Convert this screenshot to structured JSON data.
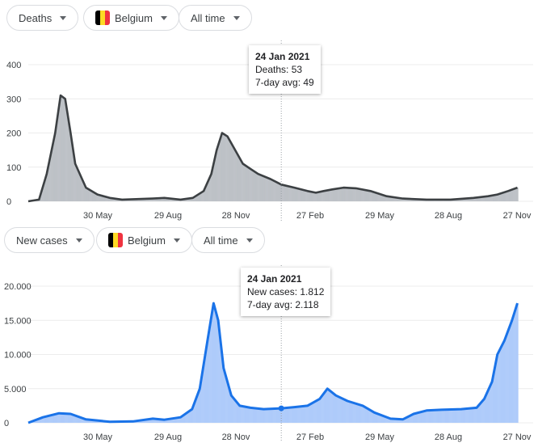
{
  "controls": [
    {
      "metric": "Deaths",
      "country": "Belgium",
      "range": "All time"
    },
    {
      "metric": "New cases",
      "country": "Belgium",
      "range": "All time"
    }
  ],
  "flag_colors": [
    "#000000",
    "#fdda24",
    "#ef3340"
  ],
  "chart_data": [
    {
      "type": "bar+line",
      "metric": "Deaths",
      "line_color": "#3c4043",
      "bar_color": "#bdc1c6",
      "y_ticks": [
        "0",
        "100",
        "200",
        "300",
        "400"
      ],
      "ylim": [
        0,
        480
      ],
      "x_ticks": [
        "30 May",
        "29 Aug",
        "28 Nov",
        "27 Feb",
        "29 May",
        "28 Aug",
        "27 Nov"
      ],
      "tooltip": {
        "date": "24 Jan 2021",
        "value_label": "Deaths: 53",
        "avg_label": "7-day avg: 49"
      },
      "avg": [
        [
          "2020-03-01",
          0
        ],
        [
          "2020-03-15",
          5
        ],
        [
          "2020-03-25",
          80
        ],
        [
          "2020-04-05",
          200
        ],
        [
          "2020-04-12",
          310
        ],
        [
          "2020-04-18",
          300
        ],
        [
          "2020-04-25",
          200
        ],
        [
          "2020-05-01",
          110
        ],
        [
          "2020-05-05",
          90
        ],
        [
          "2020-05-15",
          40
        ],
        [
          "2020-05-30",
          20
        ],
        [
          "2020-06-15",
          10
        ],
        [
          "2020-07-01",
          5
        ],
        [
          "2020-08-10",
          8
        ],
        [
          "2020-08-25",
          10
        ],
        [
          "2020-09-15",
          5
        ],
        [
          "2020-10-01",
          10
        ],
        [
          "2020-10-15",
          30
        ],
        [
          "2020-10-25",
          80
        ],
        [
          "2020-11-01",
          150
        ],
        [
          "2020-11-08",
          200
        ],
        [
          "2020-11-15",
          190
        ],
        [
          "2020-11-25",
          150
        ],
        [
          "2020-12-05",
          110
        ],
        [
          "2020-12-15",
          95
        ],
        [
          "2020-12-25",
          80
        ],
        [
          "2021-01-10",
          65
        ],
        [
          "2021-01-24",
          49
        ],
        [
          "2021-02-10",
          40
        ],
        [
          "2021-02-27",
          30
        ],
        [
          "2021-03-10",
          25
        ],
        [
          "2021-03-20",
          30
        ],
        [
          "2021-04-01",
          35
        ],
        [
          "2021-04-15",
          40
        ],
        [
          "2021-05-01",
          38
        ],
        [
          "2021-05-20",
          30
        ],
        [
          "2021-06-10",
          15
        ],
        [
          "2021-07-01",
          8
        ],
        [
          "2021-08-01",
          5
        ],
        [
          "2021-09-01",
          5
        ],
        [
          "2021-10-01",
          10
        ],
        [
          "2021-10-20",
          15
        ],
        [
          "2021-11-01",
          20
        ],
        [
          "2021-11-15",
          30
        ],
        [
          "2021-11-27",
          40
        ]
      ]
    },
    {
      "type": "bar+line",
      "metric": "New cases",
      "line_color": "#1a73e8",
      "bar_color": "#aecbfa",
      "y_ticks": [
        "0",
        "5.000",
        "10.000",
        "15.000",
        "20.000"
      ],
      "ylim": [
        0,
        22000
      ],
      "x_ticks": [
        "30 May",
        "29 Aug",
        "28 Nov",
        "27 Feb",
        "29 May",
        "28 Aug",
        "27 Nov"
      ],
      "tooltip": {
        "date": "24 Jan 2021",
        "value_label": "New cases: 1.812",
        "avg_label": "7-day avg: 2.118"
      },
      "avg": [
        [
          "2020-03-01",
          0
        ],
        [
          "2020-03-20",
          800
        ],
        [
          "2020-04-10",
          1400
        ],
        [
          "2020-04-25",
          1300
        ],
        [
          "2020-05-15",
          500
        ],
        [
          "2020-06-15",
          150
        ],
        [
          "2020-07-15",
          200
        ],
        [
          "2020-08-10",
          600
        ],
        [
          "2020-08-25",
          450
        ],
        [
          "2020-09-15",
          800
        ],
        [
          "2020-09-30",
          2000
        ],
        [
          "2020-10-10",
          5000
        ],
        [
          "2020-10-20",
          12000
        ],
        [
          "2020-10-28",
          17500
        ],
        [
          "2020-11-03",
          15000
        ],
        [
          "2020-11-10",
          8000
        ],
        [
          "2020-11-20",
          4000
        ],
        [
          "2020-12-01",
          2500
        ],
        [
          "2020-12-15",
          2200
        ],
        [
          "2021-01-01",
          2000
        ],
        [
          "2021-01-24",
          2118
        ],
        [
          "2021-02-10",
          2300
        ],
        [
          "2021-02-27",
          2500
        ],
        [
          "2021-03-15",
          3500
        ],
        [
          "2021-03-25",
          5000
        ],
        [
          "2021-04-05",
          4000
        ],
        [
          "2021-04-20",
          3200
        ],
        [
          "2021-05-10",
          2500
        ],
        [
          "2021-05-25",
          1500
        ],
        [
          "2021-06-15",
          600
        ],
        [
          "2021-07-01",
          500
        ],
        [
          "2021-07-15",
          1300
        ],
        [
          "2021-08-01",
          1800
        ],
        [
          "2021-08-20",
          1900
        ],
        [
          "2021-09-15",
          2000
        ],
        [
          "2021-10-05",
          2200
        ],
        [
          "2021-10-15",
          3500
        ],
        [
          "2021-10-25",
          6000
        ],
        [
          "2021-11-01",
          10000
        ],
        [
          "2021-11-10",
          12000
        ],
        [
          "2021-11-20",
          15000
        ],
        [
          "2021-11-27",
          17500
        ]
      ]
    }
  ]
}
